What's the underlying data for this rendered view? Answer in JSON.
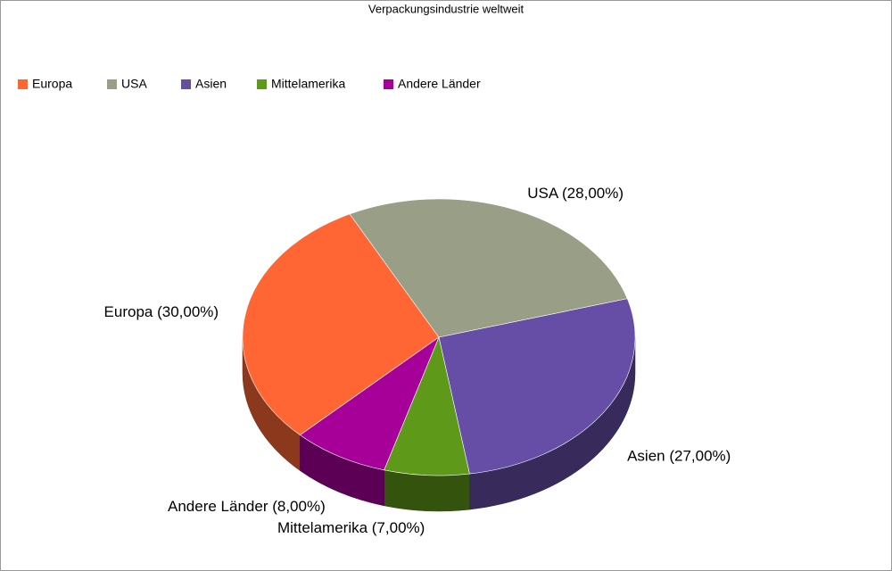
{
  "chart_data": {
    "type": "pie3d",
    "title": "Verpackungsindustrie weltweit",
    "categories": [
      "Europa",
      "USA",
      "Asien",
      "Mittelamerika",
      "Andere Länder"
    ],
    "values": [
      30,
      28,
      27,
      7,
      8
    ],
    "value_labels": [
      "Europa (30,00%)",
      "USA (28,00%)",
      "Asien (27,00%)",
      "Mittelamerika (7,00%)",
      "Andere Länder (8,00%)"
    ],
    "colors": [
      "#ff6633",
      "#999e87",
      "#664da6",
      "#5e9919",
      "#a60099"
    ],
    "legend": "top-left"
  }
}
